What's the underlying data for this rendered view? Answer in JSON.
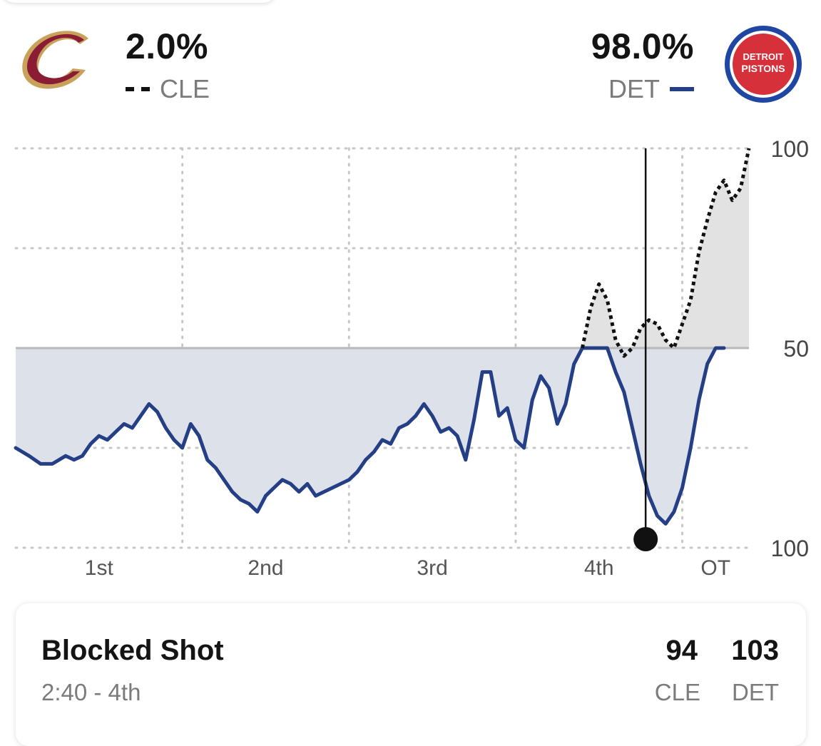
{
  "teams": {
    "away": {
      "abbr": "CLE",
      "win_pct": "2.0%",
      "line_style": "dashed",
      "color": "#111111",
      "logo_color": "#8a1c33",
      "logo_trim": "#c9a15a"
    },
    "home": {
      "abbr": "DET",
      "win_pct": "98.0%",
      "line_style": "solid",
      "color": "#243f86",
      "logo_color": "#1f46a3",
      "logo_fill": "#d6303a",
      "logo_text": "DETROIT PISTONS"
    }
  },
  "chart_data": {
    "type": "line",
    "x_axis": {
      "unit": "game progress (quarters)",
      "range": [
        0,
        4.4
      ],
      "ticks": [
        "1st",
        "2nd",
        "3rd",
        "4th",
        "OT"
      ]
    },
    "y_axis": {
      "unit": "win probability (%)",
      "range_label_top": "100",
      "midline_label": "50",
      "range_label_bottom": "100"
    },
    "grid": true,
    "marker": {
      "x": 3.78,
      "label": "current play"
    },
    "series": [
      {
        "name": "DET",
        "style": "solid",
        "color": "#243f86",
        "points": [
          [
            0.0,
            25
          ],
          [
            0.08,
            23
          ],
          [
            0.15,
            21
          ],
          [
            0.22,
            21
          ],
          [
            0.3,
            23
          ],
          [
            0.35,
            22
          ],
          [
            0.4,
            23
          ],
          [
            0.45,
            26
          ],
          [
            0.5,
            28
          ],
          [
            0.55,
            27
          ],
          [
            0.6,
            29
          ],
          [
            0.65,
            31
          ],
          [
            0.7,
            30
          ],
          [
            0.75,
            33
          ],
          [
            0.8,
            36
          ],
          [
            0.85,
            34
          ],
          [
            0.9,
            30
          ],
          [
            0.95,
            27
          ],
          [
            1.0,
            25
          ],
          [
            1.05,
            31
          ],
          [
            1.1,
            28
          ],
          [
            1.15,
            22
          ],
          [
            1.2,
            20
          ],
          [
            1.25,
            17
          ],
          [
            1.3,
            14
          ],
          [
            1.35,
            12
          ],
          [
            1.4,
            11
          ],
          [
            1.45,
            9
          ],
          [
            1.5,
            13
          ],
          [
            1.55,
            15
          ],
          [
            1.6,
            17
          ],
          [
            1.65,
            16
          ],
          [
            1.7,
            14
          ],
          [
            1.75,
            16
          ],
          [
            1.8,
            13
          ],
          [
            1.85,
            14
          ],
          [
            1.9,
            15
          ],
          [
            1.95,
            16
          ],
          [
            2.0,
            17
          ],
          [
            2.05,
            19
          ],
          [
            2.1,
            22
          ],
          [
            2.15,
            24
          ],
          [
            2.2,
            27
          ],
          [
            2.25,
            26
          ],
          [
            2.3,
            30
          ],
          [
            2.35,
            31
          ],
          [
            2.4,
            33
          ],
          [
            2.45,
            36
          ],
          [
            2.5,
            33
          ],
          [
            2.55,
            29
          ],
          [
            2.6,
            30
          ],
          [
            2.65,
            28
          ],
          [
            2.7,
            22
          ],
          [
            2.75,
            32
          ],
          [
            2.8,
            44
          ],
          [
            2.85,
            44
          ],
          [
            2.9,
            33
          ],
          [
            2.95,
            35
          ],
          [
            3.0,
            27
          ],
          [
            3.05,
            25
          ],
          [
            3.1,
            37
          ],
          [
            3.15,
            43
          ],
          [
            3.2,
            40
          ],
          [
            3.25,
            31
          ],
          [
            3.3,
            36
          ],
          [
            3.35,
            46
          ],
          [
            3.4,
            50
          ],
          [
            3.45,
            50
          ],
          [
            3.5,
            50
          ],
          [
            3.55,
            50
          ],
          [
            3.6,
            44
          ],
          [
            3.65,
            39
          ],
          [
            3.7,
            30
          ],
          [
            3.75,
            21
          ],
          [
            3.8,
            13
          ],
          [
            3.85,
            8
          ],
          [
            3.9,
            6
          ],
          [
            3.95,
            9
          ],
          [
            4.0,
            15
          ],
          [
            4.05,
            25
          ],
          [
            4.1,
            37
          ],
          [
            4.15,
            46
          ],
          [
            4.2,
            50
          ],
          [
            4.25,
            50
          ]
        ]
      },
      {
        "name": "CLE",
        "style": "dashed",
        "color": "#111111",
        "points": [
          [
            3.4,
            50
          ],
          [
            3.45,
            60
          ],
          [
            3.5,
            66
          ],
          [
            3.55,
            62
          ],
          [
            3.6,
            52
          ],
          [
            3.65,
            48
          ],
          [
            3.7,
            50
          ],
          [
            3.75,
            55
          ],
          [
            3.8,
            57
          ],
          [
            3.85,
            56
          ],
          [
            3.9,
            52
          ],
          [
            3.95,
            50
          ],
          [
            4.0,
            56
          ],
          [
            4.05,
            62
          ],
          [
            4.1,
            74
          ],
          [
            4.15,
            82
          ],
          [
            4.2,
            89
          ],
          [
            4.25,
            92
          ],
          [
            4.3,
            87
          ],
          [
            4.35,
            90
          ],
          [
            4.4,
            100
          ]
        ]
      }
    ]
  },
  "play": {
    "description": "Blocked Shot",
    "time": "2:40 - 4th",
    "score_away": "94",
    "score_home": "103"
  }
}
